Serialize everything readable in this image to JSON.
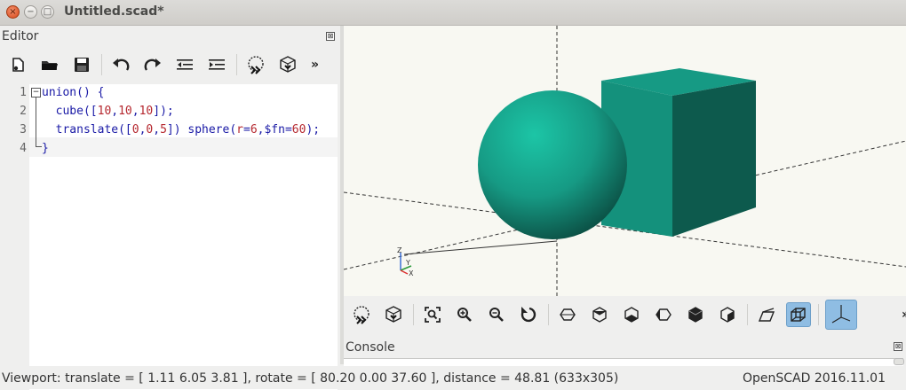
{
  "window": {
    "title": "Untitled.scad*",
    "close_glyph": "×",
    "minimize_glyph": "−",
    "maximize_glyph": "□"
  },
  "editor": {
    "title": "Editor",
    "close_glyph": "⊠",
    "toolbar": [
      {
        "name": "new-file-icon"
      },
      {
        "name": "open-folder-icon"
      },
      {
        "name": "save-icon"
      },
      {
        "name": "undo-icon"
      },
      {
        "name": "redo-icon"
      },
      {
        "name": "unindent-icon"
      },
      {
        "name": "indent-icon"
      },
      {
        "name": "preview-icon"
      },
      {
        "name": "render-icon"
      }
    ],
    "more_glyph": "»",
    "line_numbers": [
      "1",
      "2",
      "3",
      "4"
    ],
    "fold_glyph": "−",
    "code": [
      {
        "parts": [
          {
            "t": "union() {",
            "c": "kw"
          }
        ]
      },
      {
        "parts": [
          {
            "t": "  cube([",
            "c": "kw"
          },
          {
            "t": "10",
            "c": "num"
          },
          {
            "t": ",",
            "c": "kw"
          },
          {
            "t": "10",
            "c": "num"
          },
          {
            "t": ",",
            "c": "kw"
          },
          {
            "t": "10",
            "c": "num"
          },
          {
            "t": "]);",
            "c": "kw"
          }
        ]
      },
      {
        "parts": [
          {
            "t": "  translate([",
            "c": "kw"
          },
          {
            "t": "0",
            "c": "num"
          },
          {
            "t": ",",
            "c": "kw"
          },
          {
            "t": "0",
            "c": "num"
          },
          {
            "t": ",",
            "c": "kw"
          },
          {
            "t": "5",
            "c": "num"
          },
          {
            "t": "]) sphere(",
            "c": "kw"
          },
          {
            "t": "r",
            "c": "num"
          },
          {
            "t": "=",
            "c": "kw"
          },
          {
            "t": "6",
            "c": "num"
          },
          {
            "t": ",$fn=",
            "c": "kw"
          },
          {
            "t": "60",
            "c": "num"
          },
          {
            "t": ");",
            "c": "kw"
          }
        ]
      },
      {
        "parts": [
          {
            "t": "}",
            "c": "kw"
          }
        ]
      }
    ]
  },
  "view_toolbar": {
    "buttons": [
      {
        "name": "preview-icon"
      },
      {
        "name": "render-icon"
      },
      {
        "name": "view-all-icon"
      },
      {
        "name": "zoom-in-icon"
      },
      {
        "name": "zoom-out-icon"
      },
      {
        "name": "reset-view-icon"
      },
      {
        "name": "view-right-icon"
      },
      {
        "name": "view-top-icon"
      },
      {
        "name": "view-bottom-icon"
      },
      {
        "name": "view-left-icon"
      },
      {
        "name": "view-front-icon"
      },
      {
        "name": "view-back-icon"
      },
      {
        "name": "perspective-icon"
      },
      {
        "name": "orthogonal-icon",
        "active": true
      },
      {
        "name": "show-axes-icon",
        "active": true
      }
    ],
    "more_glyph": "»"
  },
  "axes_label": {
    "z": "Z",
    "y": "Y",
    "x": "X"
  },
  "console": {
    "title": "Console",
    "close_glyph": "⊠"
  },
  "status": {
    "viewport": "Viewport: translate = [ 1.11 6.05 3.81 ], rotate = [ 80.20 0.00 37.60 ], distance = 48.81 (633x305)",
    "version": "OpenSCAD 2016.11.01"
  },
  "colors": {
    "object": "#169a84",
    "object_light": "#1cc5a6",
    "object_dark": "#0d5a4d",
    "viewport_bg": "#f8f8f2",
    "active_button": "#8fbde3"
  }
}
